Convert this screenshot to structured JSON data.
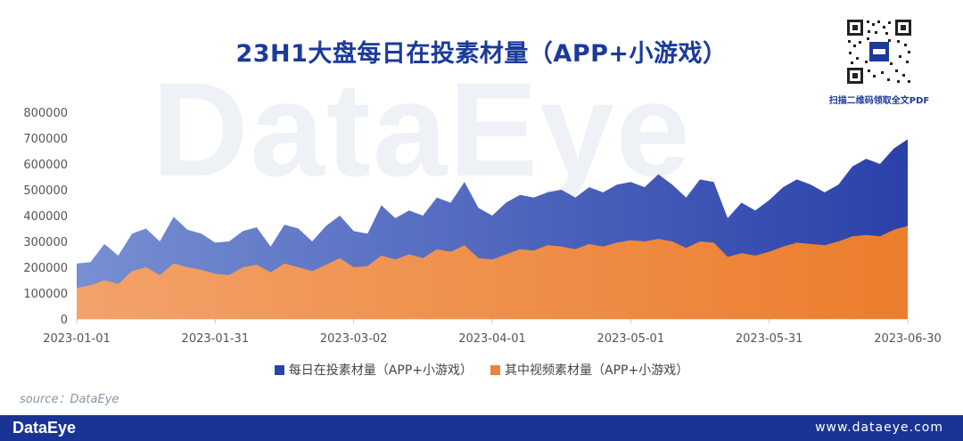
{
  "title": "23H1大盘每日在投素材量（APP+小游戏）",
  "watermark": "DataEye",
  "qr_caption": "扫描二维码领取全文PDF",
  "source": "source：DataEye",
  "footer": {
    "logo": "DataEye",
    "url": "www.dataeye.com"
  },
  "colors": {
    "total": "#2b44a8",
    "video": "#ee8433",
    "brand": "#1a3496"
  },
  "chart_data": {
    "type": "area",
    "y_ticks": [
      "800000",
      "700000",
      "600000",
      "500000",
      "400000",
      "300000",
      "200000",
      "100000",
      "0"
    ],
    "x_ticks": [
      "2023-01-01",
      "2023-01-31",
      "2023-03-02",
      "2023-04-01",
      "2023-05-01",
      "2023-05-31",
      "2023-06-30"
    ],
    "ylim": [
      0,
      800000
    ],
    "x_range": [
      "2023-01-01",
      "2023-06-30"
    ],
    "series": [
      {
        "name": "每日在投素材量（APP+小游戏）",
        "points": [
          [
            "2023-01-01",
            215000
          ],
          [
            "2023-01-04",
            220000
          ],
          [
            "2023-01-07",
            290000
          ],
          [
            "2023-01-10",
            245000
          ],
          [
            "2023-01-13",
            330000
          ],
          [
            "2023-01-16",
            350000
          ],
          [
            "2023-01-19",
            300000
          ],
          [
            "2023-01-22",
            395000
          ],
          [
            "2023-01-25",
            345000
          ],
          [
            "2023-01-28",
            330000
          ],
          [
            "2023-01-31",
            295000
          ],
          [
            "2023-02-03",
            300000
          ],
          [
            "2023-02-06",
            340000
          ],
          [
            "2023-02-09",
            355000
          ],
          [
            "2023-02-12",
            280000
          ],
          [
            "2023-02-15",
            365000
          ],
          [
            "2023-02-18",
            350000
          ],
          [
            "2023-02-21",
            300000
          ],
          [
            "2023-02-24",
            360000
          ],
          [
            "2023-02-27",
            400000
          ],
          [
            "2023-03-02",
            340000
          ],
          [
            "2023-03-05",
            330000
          ],
          [
            "2023-03-08",
            440000
          ],
          [
            "2023-03-11",
            390000
          ],
          [
            "2023-03-14",
            420000
          ],
          [
            "2023-03-17",
            400000
          ],
          [
            "2023-03-20",
            470000
          ],
          [
            "2023-03-23",
            450000
          ],
          [
            "2023-03-26",
            530000
          ],
          [
            "2023-03-29",
            430000
          ],
          [
            "2023-04-01",
            400000
          ],
          [
            "2023-04-04",
            450000
          ],
          [
            "2023-04-07",
            480000
          ],
          [
            "2023-04-10",
            470000
          ],
          [
            "2023-04-13",
            490000
          ],
          [
            "2023-04-16",
            500000
          ],
          [
            "2023-04-19",
            470000
          ],
          [
            "2023-04-22",
            510000
          ],
          [
            "2023-04-25",
            490000
          ],
          [
            "2023-04-28",
            520000
          ],
          [
            "2023-05-01",
            530000
          ],
          [
            "2023-05-04",
            510000
          ],
          [
            "2023-05-07",
            560000
          ],
          [
            "2023-05-10",
            520000
          ],
          [
            "2023-05-13",
            470000
          ],
          [
            "2023-05-16",
            540000
          ],
          [
            "2023-05-19",
            530000
          ],
          [
            "2023-05-22",
            390000
          ],
          [
            "2023-05-25",
            450000
          ],
          [
            "2023-05-28",
            420000
          ],
          [
            "2023-05-31",
            460000
          ],
          [
            "2023-06-03",
            510000
          ],
          [
            "2023-06-06",
            540000
          ],
          [
            "2023-06-09",
            520000
          ],
          [
            "2023-06-12",
            490000
          ],
          [
            "2023-06-15",
            520000
          ],
          [
            "2023-06-18",
            590000
          ],
          [
            "2023-06-21",
            620000
          ],
          [
            "2023-06-24",
            600000
          ],
          [
            "2023-06-27",
            660000
          ],
          [
            "2023-06-30",
            695000
          ]
        ]
      },
      {
        "name": "其中视频素材量（APP+小游戏）",
        "points": [
          [
            "2023-01-01",
            120000
          ],
          [
            "2023-01-04",
            130000
          ],
          [
            "2023-01-07",
            150000
          ],
          [
            "2023-01-10",
            135000
          ],
          [
            "2023-01-13",
            185000
          ],
          [
            "2023-01-16",
            200000
          ],
          [
            "2023-01-19",
            170000
          ],
          [
            "2023-01-22",
            215000
          ],
          [
            "2023-01-25",
            200000
          ],
          [
            "2023-01-28",
            190000
          ],
          [
            "2023-01-31",
            175000
          ],
          [
            "2023-02-03",
            170000
          ],
          [
            "2023-02-06",
            200000
          ],
          [
            "2023-02-09",
            210000
          ],
          [
            "2023-02-12",
            180000
          ],
          [
            "2023-02-15",
            215000
          ],
          [
            "2023-02-18",
            200000
          ],
          [
            "2023-02-21",
            185000
          ],
          [
            "2023-02-24",
            210000
          ],
          [
            "2023-02-27",
            235000
          ],
          [
            "2023-03-02",
            200000
          ],
          [
            "2023-03-05",
            205000
          ],
          [
            "2023-03-08",
            245000
          ],
          [
            "2023-03-11",
            230000
          ],
          [
            "2023-03-14",
            250000
          ],
          [
            "2023-03-17",
            235000
          ],
          [
            "2023-03-20",
            270000
          ],
          [
            "2023-03-23",
            260000
          ],
          [
            "2023-03-26",
            285000
          ],
          [
            "2023-03-29",
            235000
          ],
          [
            "2023-04-01",
            230000
          ],
          [
            "2023-04-04",
            250000
          ],
          [
            "2023-04-07",
            270000
          ],
          [
            "2023-04-10",
            265000
          ],
          [
            "2023-04-13",
            285000
          ],
          [
            "2023-04-16",
            280000
          ],
          [
            "2023-04-19",
            270000
          ],
          [
            "2023-04-22",
            290000
          ],
          [
            "2023-04-25",
            280000
          ],
          [
            "2023-04-28",
            295000
          ],
          [
            "2023-05-01",
            305000
          ],
          [
            "2023-05-04",
            300000
          ],
          [
            "2023-05-07",
            310000
          ],
          [
            "2023-05-10",
            300000
          ],
          [
            "2023-05-13",
            275000
          ],
          [
            "2023-05-16",
            300000
          ],
          [
            "2023-05-19",
            295000
          ],
          [
            "2023-05-22",
            240000
          ],
          [
            "2023-05-25",
            255000
          ],
          [
            "2023-05-28",
            245000
          ],
          [
            "2023-05-31",
            260000
          ],
          [
            "2023-06-03",
            280000
          ],
          [
            "2023-06-06",
            295000
          ],
          [
            "2023-06-09",
            290000
          ],
          [
            "2023-06-12",
            285000
          ],
          [
            "2023-06-15",
            300000
          ],
          [
            "2023-06-18",
            320000
          ],
          [
            "2023-06-21",
            325000
          ],
          [
            "2023-06-24",
            320000
          ],
          [
            "2023-06-27",
            345000
          ],
          [
            "2023-06-30",
            360000
          ]
        ]
      }
    ]
  }
}
